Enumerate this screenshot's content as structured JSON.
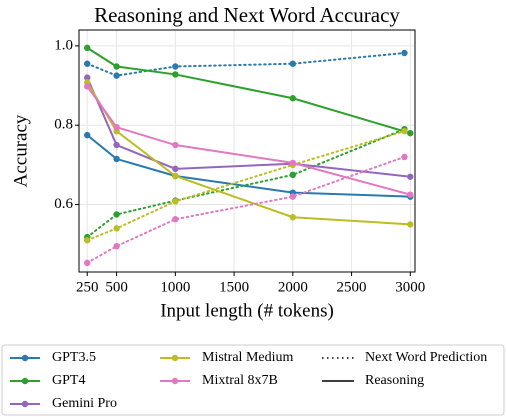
{
  "chart_data": {
    "type": "line",
    "title": "Reasoning and Next Word Accuracy",
    "xlabel": "Input length (# tokens)",
    "ylabel": "Accuracy",
    "x_reasoning": [
      250,
      500,
      1000,
      2000,
      3000
    ],
    "x_next_word": [
      250,
      500,
      1000,
      2000,
      2950
    ],
    "series": [
      {
        "name": "GPT3.5",
        "color": "#2a7ab0",
        "reasoning": [
          0.775,
          0.715,
          0.672,
          0.63,
          0.62
        ],
        "next_word": [
          0.955,
          0.925,
          0.948,
          0.955,
          0.982
        ]
      },
      {
        "name": "GPT4",
        "color": "#2ca02c",
        "reasoning": [
          0.995,
          0.948,
          0.928,
          0.868,
          0.78
        ],
        "next_word": [
          0.518,
          0.575,
          0.61,
          0.675,
          0.79
        ]
      },
      {
        "name": "Gemini Pro",
        "color": "#9467bd",
        "reasoning": [
          0.92,
          0.75,
          0.69,
          0.703,
          0.67
        ],
        "next_word": [
          null,
          null,
          null,
          null,
          null
        ]
      },
      {
        "name": "Mistral Medium",
        "color": "#bcbd22",
        "reasoning": [
          0.908,
          0.785,
          0.672,
          0.568,
          0.55
        ],
        "next_word": [
          0.51,
          0.54,
          0.608,
          0.7,
          0.785
        ]
      },
      {
        "name": "Mixtral 8x7B",
        "color": "#e377c2",
        "reasoning": [
          0.898,
          0.795,
          0.75,
          0.705,
          0.625
        ],
        "next_word": [
          0.453,
          0.495,
          0.563,
          0.62,
          0.72
        ]
      }
    ],
    "line_styles": [
      {
        "label": "Next Word Prediction",
        "dash": "dotted"
      },
      {
        "label": "Reasoning",
        "dash": "solid"
      }
    ],
    "xlim": [
      180,
      3040
    ],
    "ylim": [
      0.43,
      1.04
    ],
    "xticks": [
      250,
      500,
      1000,
      1500,
      2000,
      2500,
      3000
    ],
    "yticks": [
      0.6,
      0.8,
      {
        "value": 1,
        "label": "1.0"
      }
    ],
    "grid": true
  }
}
